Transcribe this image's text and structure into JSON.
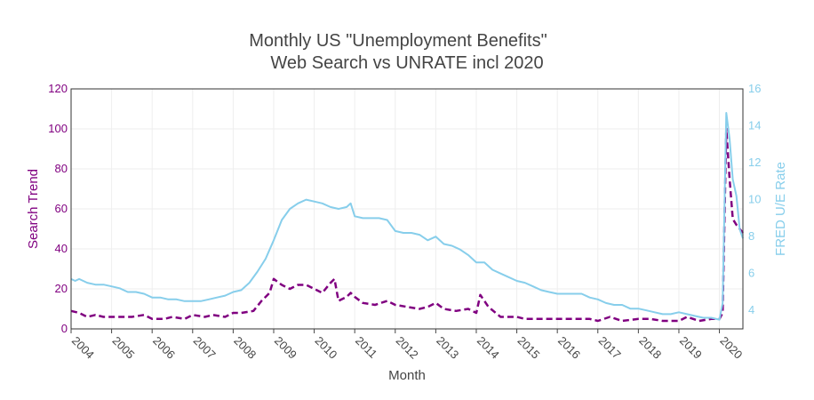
{
  "chart_data": {
    "type": "line",
    "title_line1": "Monthly US \"Unemployment Benefits\"",
    "title_line2": "Web Search vs UNRATE incl 2020",
    "xlabel": "Month",
    "ylabel_left": "Search Trend",
    "ylabel_right": "FRED U/E Rate",
    "xlim": [
      2004.0,
      2020.58
    ],
    "ylim_left": [
      0,
      120
    ],
    "ylim_right": [
      3.0,
      16.0
    ],
    "yticks_left": [
      "0",
      "20",
      "40",
      "60",
      "80",
      "100",
      "120"
    ],
    "yticks_right": [
      "4",
      "6",
      "8",
      "10",
      "12",
      "14",
      "16"
    ],
    "xticks": [
      "2004",
      "2005",
      "2006",
      "2007",
      "2008",
      "2009",
      "2010",
      "2011",
      "2012",
      "2013",
      "2014",
      "2015",
      "2016",
      "2017",
      "2018",
      "2019",
      "2020"
    ],
    "grid": true,
    "colors": {
      "search": "#800080",
      "unrate": "#87ceeb",
      "title": "#444444",
      "grid": "#eeeeee"
    },
    "series": [
      {
        "axis": "left",
        "style": "dashed",
        "x": [
          2004.0,
          2004.2,
          2004.4,
          2004.6,
          2004.8,
          2005.0,
          2005.3,
          2005.5,
          2005.8,
          2006.0,
          2006.3,
          2006.5,
          2006.8,
          2007.0,
          2007.3,
          2007.5,
          2007.8,
          2008.0,
          2008.2,
          2008.5,
          2008.7,
          2008.9,
          2009.0,
          2009.2,
          2009.4,
          2009.6,
          2009.8,
          2010.0,
          2010.2,
          2010.4,
          2010.5,
          2010.6,
          2010.8,
          2010.9,
          2011.0,
          2011.2,
          2011.5,
          2011.8,
          2012.0,
          2012.3,
          2012.6,
          2012.8,
          2013.0,
          2013.2,
          2013.5,
          2013.8,
          2014.0,
          2014.1,
          2014.3,
          2014.6,
          2015.0,
          2015.2,
          2015.5,
          2016.0,
          2016.5,
          2016.8,
          2017.0,
          2017.3,
          2017.6,
          2018.0,
          2018.3,
          2018.6,
          2019.0,
          2019.2,
          2019.5,
          2019.8,
          2020.0,
          2020.08,
          2020.17,
          2020.25,
          2020.33,
          2020.42,
          2020.5,
          2020.58
        ],
        "y": [
          9,
          8,
          6,
          7,
          6,
          6,
          6,
          6,
          7,
          5,
          5,
          6,
          5,
          7,
          6,
          7,
          6,
          8,
          8,
          9,
          14,
          18,
          25,
          22,
          20,
          22,
          22,
          20,
          18,
          23,
          25,
          14,
          16,
          18,
          16,
          13,
          12,
          14,
          12,
          11,
          10,
          11,
          13,
          10,
          9,
          10,
          8,
          17,
          11,
          6,
          6,
          5,
          5,
          5,
          5,
          5,
          4,
          6,
          4,
          5,
          5,
          4,
          4,
          6,
          4,
          5,
          5,
          8,
          100,
          75,
          55,
          52,
          50,
          48
        ]
      },
      {
        "axis": "right",
        "style": "solid",
        "x": [
          2004.0,
          2004.1,
          2004.2,
          2004.4,
          2004.6,
          2004.8,
          2005.0,
          2005.2,
          2005.4,
          2005.6,
          2005.8,
          2006.0,
          2006.2,
          2006.4,
          2006.6,
          2006.8,
          2007.0,
          2007.2,
          2007.4,
          2007.6,
          2007.8,
          2008.0,
          2008.2,
          2008.4,
          2008.6,
          2008.8,
          2009.0,
          2009.2,
          2009.4,
          2009.6,
          2009.8,
          2010.0,
          2010.2,
          2010.4,
          2010.6,
          2010.8,
          2010.9,
          2011.0,
          2011.2,
          2011.4,
          2011.6,
          2011.8,
          2012.0,
          2012.2,
          2012.4,
          2012.6,
          2012.8,
          2013.0,
          2013.2,
          2013.4,
          2013.6,
          2013.8,
          2014.0,
          2014.2,
          2014.4,
          2014.6,
          2014.8,
          2015.0,
          2015.2,
          2015.4,
          2015.6,
          2015.8,
          2016.0,
          2016.2,
          2016.4,
          2016.6,
          2016.8,
          2017.0,
          2017.2,
          2017.4,
          2017.6,
          2017.8,
          2018.0,
          2018.2,
          2018.4,
          2018.6,
          2018.8,
          2019.0,
          2019.2,
          2019.4,
          2019.6,
          2019.8,
          2020.0,
          2020.08,
          2020.17,
          2020.25,
          2020.33,
          2020.42,
          2020.5,
          2020.58
        ],
        "y": [
          5.7,
          5.6,
          5.7,
          5.5,
          5.4,
          5.4,
          5.3,
          5.2,
          5.0,
          5.0,
          4.9,
          4.7,
          4.7,
          4.6,
          4.6,
          4.5,
          4.5,
          4.5,
          4.6,
          4.7,
          4.8,
          5.0,
          5.1,
          5.5,
          6.1,
          6.8,
          7.8,
          8.9,
          9.5,
          9.8,
          10.0,
          9.9,
          9.8,
          9.6,
          9.5,
          9.6,
          9.8,
          9.1,
          9.0,
          9.0,
          9.0,
          8.9,
          8.3,
          8.2,
          8.2,
          8.1,
          7.8,
          8.0,
          7.6,
          7.5,
          7.3,
          7.0,
          6.6,
          6.6,
          6.2,
          6.0,
          5.8,
          5.6,
          5.5,
          5.3,
          5.1,
          5.0,
          4.9,
          4.9,
          4.9,
          4.9,
          4.7,
          4.6,
          4.4,
          4.3,
          4.3,
          4.1,
          4.1,
          4.0,
          3.9,
          3.8,
          3.8,
          3.9,
          3.8,
          3.7,
          3.6,
          3.6,
          3.5,
          4.4,
          14.7,
          13.3,
          11.1,
          10.2,
          8.4,
          7.9
        ]
      }
    ]
  }
}
